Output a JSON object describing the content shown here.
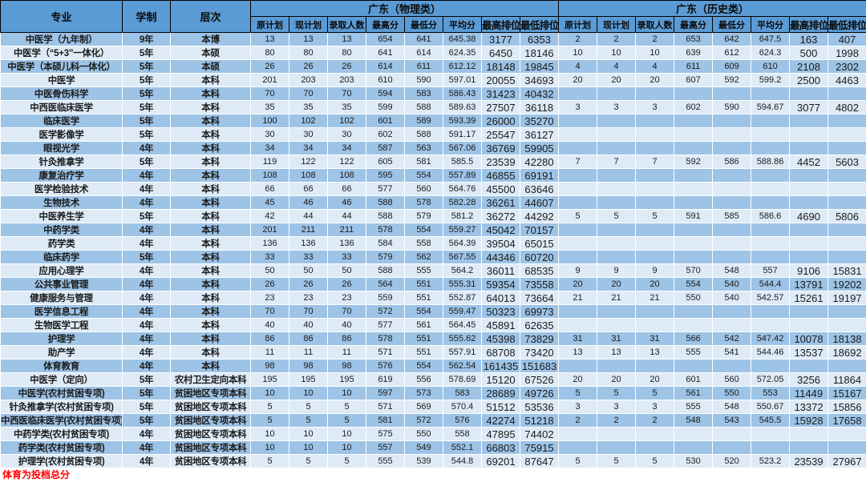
{
  "colors": {
    "header_bg": "#5b9bd5",
    "row_band_dark": "#9dc3e6",
    "row_band_light": "#deebf7",
    "footnote_red": "#ff0000"
  },
  "table": {
    "columns": {
      "major": "专业",
      "duration": "学制",
      "level": "层次"
    },
    "groups": [
      {
        "key": "physics",
        "label": "广东（物理类）"
      },
      {
        "key": "history",
        "label": "广东（历史类）"
      }
    ],
    "metric_headers": [
      "原计划",
      "现计划",
      "录取人数",
      "最高分",
      "最低分",
      "平均分",
      "最高排位",
      "最低排位"
    ],
    "rows": [
      {
        "major": "中医学（九年制）",
        "duration": "9年",
        "level": "本博",
        "physics": [
          "13",
          "13",
          "13",
          "654",
          "641",
          "645.38",
          "3177",
          "6353"
        ],
        "history": [
          "2",
          "2",
          "2",
          "653",
          "642",
          "647.5",
          "163",
          "407"
        ]
      },
      {
        "major": "中医学（“5+3”一体化）",
        "duration": "5年",
        "level": "本硕",
        "physics": [
          "80",
          "80",
          "80",
          "641",
          "614",
          "624.35",
          "6450",
          "18146"
        ],
        "history": [
          "10",
          "10",
          "10",
          "639",
          "612",
          "624.3",
          "500",
          "1998"
        ]
      },
      {
        "major": "中医学（本硕儿科一体化）",
        "duration": "5年",
        "level": "本硕",
        "physics": [
          "26",
          "26",
          "26",
          "614",
          "611",
          "612.12",
          "18148",
          "19845"
        ],
        "history": [
          "4",
          "4",
          "4",
          "611",
          "609",
          "610",
          "2108",
          "2302"
        ]
      },
      {
        "major": "中医学",
        "duration": "5年",
        "level": "本科",
        "physics": [
          "201",
          "203",
          "203",
          "610",
          "590",
          "597.01",
          "20055",
          "34693"
        ],
        "history": [
          "20",
          "20",
          "20",
          "607",
          "592",
          "599.2",
          "2500",
          "4463"
        ]
      },
      {
        "major": "中医骨伤科学",
        "duration": "5年",
        "level": "本科",
        "physics": [
          "70",
          "70",
          "70",
          "594",
          "583",
          "586.43",
          "31423",
          "40432"
        ],
        "history": []
      },
      {
        "major": "中西医临床医学",
        "duration": "5年",
        "level": "本科",
        "physics": [
          "35",
          "35",
          "35",
          "599",
          "588",
          "589.63",
          "27507",
          "36118"
        ],
        "history": [
          "3",
          "3",
          "3",
          "602",
          "590",
          "594.67",
          "3077",
          "4802"
        ]
      },
      {
        "major": "临床医学",
        "duration": "5年",
        "level": "本科",
        "physics": [
          "100",
          "102",
          "102",
          "601",
          "589",
          "593.39",
          "26000",
          "35270"
        ],
        "history": []
      },
      {
        "major": "医学影像学",
        "duration": "5年",
        "level": "本科",
        "physics": [
          "30",
          "30",
          "30",
          "602",
          "588",
          "591.17",
          "25547",
          "36127"
        ],
        "history": []
      },
      {
        "major": "眼视光学",
        "duration": "4年",
        "level": "本科",
        "physics": [
          "34",
          "34",
          "34",
          "587",
          "563",
          "567.06",
          "36769",
          "59905"
        ],
        "history": []
      },
      {
        "major": "针灸推拿学",
        "duration": "5年",
        "level": "本科",
        "physics": [
          "119",
          "122",
          "122",
          "605",
          "581",
          "585.5",
          "23539",
          "42280"
        ],
        "history": [
          "7",
          "7",
          "7",
          "592",
          "586",
          "588.86",
          "4452",
          "5603"
        ]
      },
      {
        "major": "康复治疗学",
        "duration": "4年",
        "level": "本科",
        "physics": [
          "108",
          "108",
          "108",
          "595",
          "554",
          "557.89",
          "46855",
          "69191"
        ],
        "history": []
      },
      {
        "major": "医学检验技术",
        "duration": "4年",
        "level": "本科",
        "physics": [
          "66",
          "66",
          "66",
          "577",
          "560",
          "564.76",
          "45500",
          "63646"
        ],
        "history": []
      },
      {
        "major": "生物技术",
        "duration": "4年",
        "level": "本科",
        "physics": [
          "45",
          "46",
          "46",
          "588",
          "578",
          "582.28",
          "36261",
          "44607"
        ],
        "history": []
      },
      {
        "major": "中医养生学",
        "duration": "5年",
        "level": "本科",
        "physics": [
          "42",
          "44",
          "44",
          "588",
          "579",
          "581.2",
          "36272",
          "44292"
        ],
        "history": [
          "5",
          "5",
          "5",
          "591",
          "585",
          "586.6",
          "4690",
          "5806"
        ]
      },
      {
        "major": "中药学类",
        "duration": "4年",
        "level": "本科",
        "physics": [
          "201",
          "211",
          "211",
          "578",
          "554",
          "559.27",
          "45042",
          "70157"
        ],
        "history": []
      },
      {
        "major": "药学类",
        "duration": "4年",
        "level": "本科",
        "physics": [
          "136",
          "136",
          "136",
          "584",
          "558",
          "564.39",
          "39504",
          "65015"
        ],
        "history": []
      },
      {
        "major": "临床药学",
        "duration": "5年",
        "level": "本科",
        "physics": [
          "33",
          "33",
          "33",
          "579",
          "562",
          "567.55",
          "44346",
          "60720"
        ],
        "history": []
      },
      {
        "major": "应用心理学",
        "duration": "4年",
        "level": "本科",
        "physics": [
          "50",
          "50",
          "50",
          "588",
          "555",
          "564.2",
          "36011",
          "68535"
        ],
        "history": [
          "9",
          "9",
          "9",
          "570",
          "548",
          "557",
          "9106",
          "15831"
        ]
      },
      {
        "major": "公共事业管理",
        "duration": "4年",
        "level": "本科",
        "physics": [
          "26",
          "26",
          "26",
          "564",
          "551",
          "555.31",
          "59354",
          "73558"
        ],
        "history": [
          "20",
          "20",
          "20",
          "554",
          "540",
          "544.4",
          "13791",
          "19202"
        ]
      },
      {
        "major": "健康服务与管理",
        "duration": "4年",
        "level": "本科",
        "physics": [
          "23",
          "23",
          "23",
          "559",
          "551",
          "552.87",
          "64013",
          "73664"
        ],
        "history": [
          "21",
          "21",
          "21",
          "550",
          "540",
          "542.57",
          "15261",
          "19197"
        ]
      },
      {
        "major": "医学信息工程",
        "duration": "4年",
        "level": "本科",
        "physics": [
          "70",
          "70",
          "70",
          "572",
          "554",
          "559.47",
          "50323",
          "69973"
        ],
        "history": []
      },
      {
        "major": "生物医学工程",
        "duration": "4年",
        "level": "本科",
        "physics": [
          "40",
          "40",
          "40",
          "577",
          "561",
          "564.45",
          "45891",
          "62635"
        ],
        "history": []
      },
      {
        "major": "护理学",
        "duration": "4年",
        "level": "本科",
        "physics": [
          "86",
          "86",
          "86",
          "578",
          "551",
          "555.62",
          "45398",
          "73829"
        ],
        "history": [
          "31",
          "31",
          "31",
          "566",
          "542",
          "547.42",
          "10078",
          "18138"
        ]
      },
      {
        "major": "助产学",
        "duration": "4年",
        "level": "本科",
        "physics": [
          "11",
          "11",
          "11",
          "571",
          "551",
          "557.91",
          "68708",
          "73420"
        ],
        "history": [
          "13",
          "13",
          "13",
          "555",
          "541",
          "544.46",
          "13537",
          "18692"
        ]
      },
      {
        "major": "体育教育",
        "duration": "4年",
        "level": "本科",
        "physics": [
          "98",
          "98",
          "98",
          "576",
          "554",
          "562.54",
          "161435",
          "151683"
        ],
        "history": []
      },
      {
        "major": "中医学（定向）",
        "duration": "5年",
        "level": "农村卫生定向本科",
        "physics": [
          "195",
          "195",
          "195",
          "619",
          "556",
          "578.69",
          "15120",
          "67526"
        ],
        "history": [
          "20",
          "20",
          "20",
          "601",
          "560",
          "572.05",
          "3256",
          "11864"
        ]
      },
      {
        "major": "中医学(农村贫困专项)",
        "duration": "5年",
        "level": "贫困地区专项本科",
        "physics": [
          "10",
          "10",
          "10",
          "597",
          "573",
          "583",
          "28689",
          "49726"
        ],
        "history": [
          "5",
          "5",
          "5",
          "561",
          "550",
          "553",
          "11449",
          "15167"
        ]
      },
      {
        "major": "针灸推拿学(农村贫困专项)",
        "duration": "5年",
        "level": "贫困地区专项本科",
        "physics": [
          "5",
          "5",
          "5",
          "571",
          "569",
          "570.4",
          "51512",
          "53536"
        ],
        "history": [
          "3",
          "3",
          "3",
          "555",
          "548",
          "550.67",
          "13372",
          "15856"
        ]
      },
      {
        "major": "中西医临床医学(农村贫困专项)",
        "duration": "5年",
        "level": "贫困地区专项本科",
        "physics": [
          "5",
          "5",
          "5",
          "581",
          "572",
          "576",
          "42274",
          "51218"
        ],
        "history": [
          "2",
          "2",
          "2",
          "548",
          "543",
          "545.5",
          "15928",
          "17658"
        ]
      },
      {
        "major": "中药学类(农村贫困专项)",
        "duration": "4年",
        "level": "贫困地区专项本科",
        "physics": [
          "10",
          "10",
          "10",
          "575",
          "550",
          "558",
          "47895",
          "74402"
        ],
        "history": []
      },
      {
        "major": "药学类(农村贫困专项)",
        "duration": "4年",
        "level": "贫困地区专项本科",
        "physics": [
          "10",
          "10",
          "10",
          "557",
          "549",
          "552.1",
          "66803",
          "75915"
        ],
        "history": []
      },
      {
        "major": "护理学(农村贫困专项)",
        "duration": "4年",
        "level": "贫困地区专项本科",
        "physics": [
          "5",
          "5",
          "5",
          "555",
          "539",
          "544.8",
          "69201",
          "87647"
        ],
        "history": [
          "5",
          "5",
          "5",
          "530",
          "520",
          "523.2",
          "23539",
          "27967"
        ]
      }
    ],
    "footnote": "体育为投档总分"
  }
}
